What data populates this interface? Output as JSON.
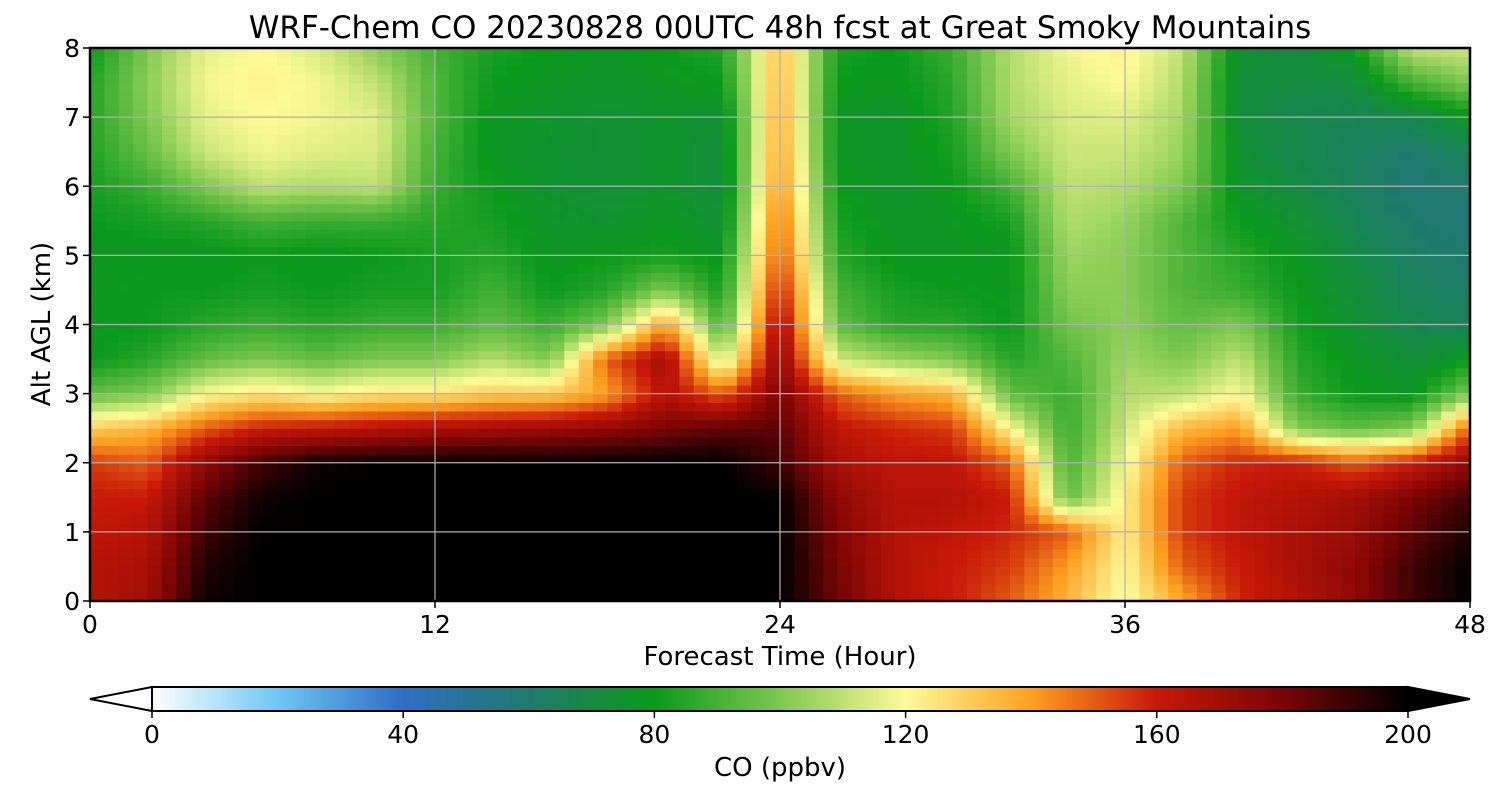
{
  "chart_data": {
    "type": "heatmap",
    "title": "WRF-Chem CO  20230828 00UTC 48h fcst at Great Smoky Mountains",
    "xlabel": "Forecast Time (Hour)",
    "ylabel": "Alt AGL (km)",
    "xlim": [
      0,
      48
    ],
    "ylim": [
      0,
      8
    ],
    "xticks": [
      0,
      12,
      24,
      36,
      48
    ],
    "yticks": [
      0,
      1,
      2,
      3,
      4,
      5,
      6,
      7,
      8
    ],
    "grid": true,
    "x": [
      0,
      2,
      4,
      6,
      8,
      10,
      12,
      14,
      16,
      18,
      20,
      22,
      24,
      26,
      28,
      30,
      32,
      34,
      36,
      38,
      40,
      42,
      44,
      46,
      48
    ],
    "y": [
      0,
      0.5,
      1,
      1.5,
      2,
      2.5,
      3,
      3.5,
      4,
      4.5,
      5,
      5.5,
      6,
      6.5,
      7,
      7.5,
      8
    ],
    "z": [
      [
        165,
        170,
        198,
        200,
        200,
        200,
        200,
        200,
        200,
        200,
        200,
        200,
        200,
        182,
        165,
        160,
        150,
        135,
        118,
        138,
        158,
        165,
        175,
        190,
        200
      ],
      [
        165,
        168,
        195,
        200,
        200,
        200,
        200,
        200,
        200,
        200,
        200,
        200,
        200,
        180,
        165,
        160,
        155,
        140,
        120,
        150,
        160,
        168,
        175,
        190,
        200
      ],
      [
        162,
        165,
        190,
        200,
        200,
        200,
        200,
        200,
        200,
        200,
        200,
        200,
        200,
        178,
        165,
        162,
        158,
        150,
        122,
        155,
        162,
        168,
        172,
        185,
        195
      ],
      [
        160,
        160,
        185,
        198,
        200,
        200,
        200,
        200,
        200,
        200,
        200,
        200,
        200,
        175,
        165,
        165,
        160,
        95,
        122,
        155,
        162,
        165,
        170,
        180,
        190
      ],
      [
        155,
        150,
        175,
        190,
        198,
        200,
        200,
        200,
        200,
        200,
        200,
        200,
        190,
        168,
        162,
        162,
        150,
        90,
        118,
        150,
        158,
        160,
        150,
        160,
        175
      ],
      [
        130,
        135,
        150,
        160,
        162,
        165,
        168,
        170,
        172,
        175,
        180,
        185,
        185,
        162,
        158,
        155,
        120,
        88,
        112,
        135,
        140,
        100,
        95,
        100,
        150
      ],
      [
        95,
        100,
        120,
        125,
        120,
        125,
        125,
        130,
        130,
        140,
        165,
        150,
        180,
        150,
        140,
        135,
        95,
        88,
        108,
        110,
        120,
        88,
        80,
        78,
        100
      ],
      [
        80,
        85,
        95,
        100,
        95,
        100,
        100,
        108,
        100,
        150,
        170,
        110,
        175,
        112,
        105,
        100,
        85,
        92,
        105,
        100,
        110,
        85,
        78,
        72,
        80
      ],
      [
        78,
        80,
        85,
        88,
        85,
        88,
        88,
        95,
        88,
        100,
        140,
        90,
        168,
        95,
        85,
        85,
        80,
        98,
        102,
        95,
        100,
        82,
        74,
        68,
        65
      ],
      [
        78,
        80,
        80,
        82,
        80,
        82,
        82,
        90,
        80,
        85,
        100,
        82,
        160,
        90,
        82,
        80,
        78,
        102,
        102,
        92,
        88,
        80,
        72,
        65,
        62
      ],
      [
        78,
        78,
        78,
        80,
        78,
        80,
        82,
        85,
        78,
        80,
        82,
        78,
        152,
        85,
        78,
        78,
        78,
        105,
        102,
        92,
        85,
        78,
        70,
        62,
        60
      ],
      [
        80,
        82,
        85,
        90,
        88,
        88,
        85,
        82,
        76,
        75,
        78,
        74,
        148,
        82,
        77,
        78,
        82,
        108,
        104,
        92,
        80,
        74,
        66,
        60,
        58
      ],
      [
        82,
        88,
        100,
        110,
        108,
        110,
        88,
        80,
        75,
        74,
        76,
        72,
        142,
        80,
        76,
        80,
        90,
        110,
        108,
        100,
        76,
        70,
        64,
        58,
        60
      ],
      [
        84,
        96,
        112,
        118,
        115,
        114,
        90,
        78,
        75,
        74,
        76,
        72,
        140,
        78,
        76,
        82,
        100,
        112,
        112,
        104,
        74,
        68,
        64,
        60,
        66
      ],
      [
        85,
        100,
        116,
        120,
        118,
        115,
        92,
        78,
        76,
        74,
        76,
        74,
        138,
        78,
        76,
        84,
        106,
        114,
        115,
        106,
        72,
        68,
        66,
        68,
        78
      ],
      [
        84,
        102,
        118,
        122,
        118,
        110,
        92,
        80,
        78,
        76,
        78,
        80,
        136,
        80,
        78,
        86,
        108,
        116,
        120,
        108,
        72,
        70,
        72,
        90,
        100
      ],
      [
        80,
        100,
        116,
        120,
        114,
        102,
        90,
        82,
        80,
        78,
        80,
        84,
        134,
        82,
        80,
        88,
        108,
        118,
        122,
        110,
        74,
        72,
        80,
        110,
        112
      ]
    ],
    "colorbar": {
      "label": "CO  (ppbv)",
      "ticks": [
        0,
        40,
        80,
        120,
        160,
        200
      ],
      "vmin": 0,
      "vmax": 200,
      "extend": "both",
      "colors": [
        "#ffffff",
        "#6ec6f5",
        "#2f6ec4",
        "#1f7a6e",
        "#0a9a1a",
        "#7ec850",
        "#fffa96",
        "#ffa020",
        "#c81808",
        "#7a0505",
        "#000000"
      ]
    }
  }
}
